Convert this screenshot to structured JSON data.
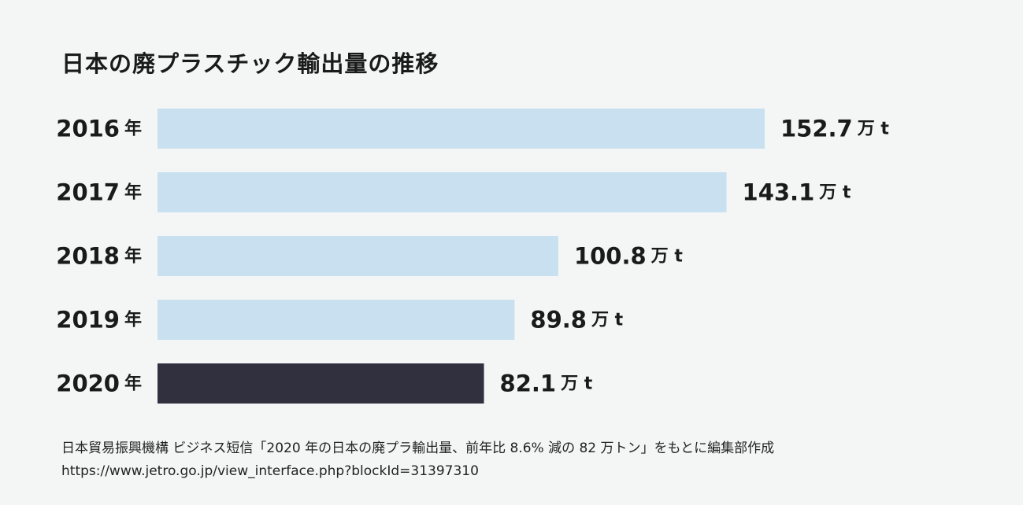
{
  "title": "日本の廃プラスチック輸出量の推移",
  "chart_data": {
    "type": "bar",
    "orientation": "horizontal",
    "title": "日本の廃プラスチック輸出量の推移",
    "year_suffix": "年",
    "value_unit": "万 t",
    "categories": [
      "2016",
      "2017",
      "2018",
      "2019",
      "2020"
    ],
    "values": [
      152.7,
      143.1,
      100.8,
      89.8,
      82.1
    ],
    "value_labels": [
      "152.7",
      "143.1",
      "100.8",
      "89.8",
      "82.1"
    ],
    "colors": {
      "default": "#c8e0ef",
      "highlight": "#30303f"
    },
    "highlight_category": "2020",
    "grid": false,
    "legend": "none"
  },
  "source": {
    "line1": "日本貿易振興機構 ビジネス短信「2020 年の日本の廃プラ輸出量、前年比 8.6% 減の 82 万トン」をもとに編集部作成",
    "line2": "https://www.jetro.go.jp/view_interface.php?blockId=31397310"
  }
}
